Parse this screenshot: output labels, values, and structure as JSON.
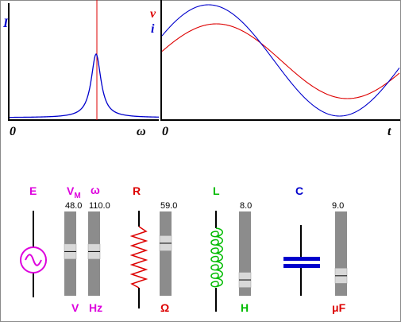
{
  "colors": {
    "current": "#0000cc",
    "voltage": "#dd0000",
    "source": "#dd00dd",
    "resistor": "#dd0000",
    "inductor": "#00bb00",
    "capacitor": "#0000cc",
    "slider_track": "#8c8c8c",
    "slider_thumb": "#d8d8d8"
  },
  "resonance_plot": {
    "y_label": "I",
    "x_label": "ω",
    "origin_label": "0"
  },
  "time_plot": {
    "y_label_voltage": "v",
    "y_label_current": "i",
    "x_label": "t",
    "origin_label": "0"
  },
  "source": {
    "label": "E",
    "vm_label": "V",
    "vm_sub": "M",
    "omega_label": "ω",
    "vm_value": "48.0",
    "omega_value": "110.0",
    "vm_unit": "V",
    "omega_unit": "Hz",
    "vm_level": 0.47,
    "omega_level": 0.47,
    "icon": "ac-source-icon"
  },
  "resistor": {
    "label": "R",
    "value": "59.0",
    "unit": "Ω",
    "level": 0.35,
    "icon": "resistor-icon"
  },
  "inductor": {
    "label": "L",
    "value": "8.0",
    "unit": "H",
    "level": 0.88,
    "icon": "inductor-coil-icon"
  },
  "capacitor": {
    "label": "C",
    "value": "9.0",
    "unit": "μF",
    "level": 0.82,
    "icon": "capacitor-icon"
  }
}
